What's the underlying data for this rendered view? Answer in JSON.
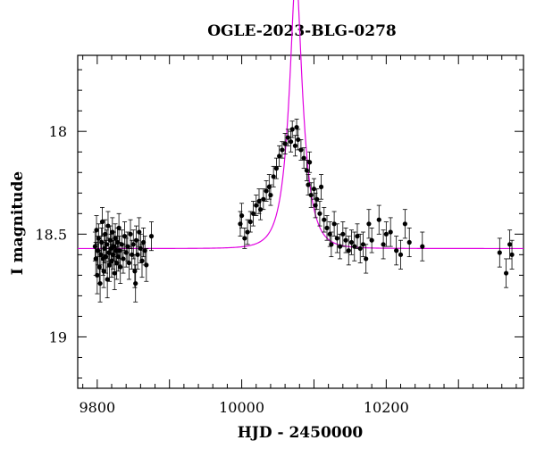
{
  "chart_data": {
    "type": "scatter",
    "title": "OGLE-2023-BLG-0278",
    "xlabel": "HJD - 2450000",
    "ylabel": "I magnitude",
    "xlim": [
      9773,
      10390
    ],
    "ylim": [
      19.25,
      17.63
    ],
    "y_inverted": true,
    "x_ticks": [
      9800,
      10000,
      10200
    ],
    "y_ticks": [
      18,
      18.5,
      19
    ],
    "colors": {
      "points": "#000000",
      "model": "#e100e1",
      "axes": "#000000"
    },
    "series": [
      {
        "values": [
          {
            "x": 9797,
            "y": 18.56,
            "err": 0.07
          },
          {
            "x": 9798,
            "y": 18.62,
            "err": 0.08
          },
          {
            "x": 9799,
            "y": 18.48,
            "err": 0.07
          },
          {
            "x": 9800,
            "y": 18.7,
            "err": 0.09
          },
          {
            "x": 9801,
            "y": 18.58,
            "err": 0.07
          },
          {
            "x": 9802,
            "y": 18.52,
            "err": 0.07
          },
          {
            "x": 9803,
            "y": 18.66,
            "err": 0.08
          },
          {
            "x": 9804,
            "y": 18.74,
            "err": 0.09
          },
          {
            "x": 9805,
            "y": 18.6,
            "err": 0.07
          },
          {
            "x": 9806,
            "y": 18.54,
            "err": 0.07
          },
          {
            "x": 9807,
            "y": 18.44,
            "err": 0.07
          },
          {
            "x": 9808,
            "y": 18.62,
            "err": 0.08
          },
          {
            "x": 9809,
            "y": 18.68,
            "err": 0.08
          },
          {
            "x": 9810,
            "y": 18.57,
            "err": 0.07
          },
          {
            "x": 9811,
            "y": 18.5,
            "err": 0.07
          },
          {
            "x": 9812,
            "y": 18.61,
            "err": 0.08
          },
          {
            "x": 9813,
            "y": 18.55,
            "err": 0.07
          },
          {
            "x": 9814,
            "y": 18.72,
            "err": 0.09
          },
          {
            "x": 9815,
            "y": 18.46,
            "err": 0.07
          },
          {
            "x": 9816,
            "y": 18.59,
            "err": 0.07
          },
          {
            "x": 9817,
            "y": 18.65,
            "err": 0.08
          },
          {
            "x": 9818,
            "y": 18.53,
            "err": 0.07
          },
          {
            "x": 9819,
            "y": 18.57,
            "err": 0.07
          },
          {
            "x": 9820,
            "y": 18.63,
            "err": 0.08
          },
          {
            "x": 9821,
            "y": 18.49,
            "err": 0.07
          },
          {
            "x": 9822,
            "y": 18.6,
            "err": 0.07
          },
          {
            "x": 9823,
            "y": 18.56,
            "err": 0.07
          },
          {
            "x": 9824,
            "y": 18.69,
            "err": 0.08
          },
          {
            "x": 9825,
            "y": 18.52,
            "err": 0.07
          },
          {
            "x": 9826,
            "y": 18.58,
            "err": 0.07
          },
          {
            "x": 9827,
            "y": 18.64,
            "err": 0.08
          },
          {
            "x": 9828,
            "y": 18.54,
            "err": 0.07
          },
          {
            "x": 9829,
            "y": 18.61,
            "err": 0.07
          },
          {
            "x": 9830,
            "y": 18.47,
            "err": 0.07
          },
          {
            "x": 9831,
            "y": 18.58,
            "err": 0.07
          },
          {
            "x": 9832,
            "y": 18.66,
            "err": 0.08
          },
          {
            "x": 9834,
            "y": 18.55,
            "err": 0.07
          },
          {
            "x": 9836,
            "y": 18.62,
            "err": 0.07
          },
          {
            "x": 9838,
            "y": 18.51,
            "err": 0.07
          },
          {
            "x": 9840,
            "y": 18.59,
            "err": 0.07
          },
          {
            "x": 9842,
            "y": 18.56,
            "err": 0.07
          },
          {
            "x": 9844,
            "y": 18.64,
            "err": 0.08
          },
          {
            "x": 9846,
            "y": 18.5,
            "err": 0.07
          },
          {
            "x": 9848,
            "y": 18.6,
            "err": 0.07
          },
          {
            "x": 9850,
            "y": 18.55,
            "err": 0.07
          },
          {
            "x": 9852,
            "y": 18.68,
            "err": 0.08
          },
          {
            "x": 9853,
            "y": 18.74,
            "err": 0.09
          },
          {
            "x": 9854,
            "y": 18.53,
            "err": 0.07
          },
          {
            "x": 9856,
            "y": 18.6,
            "err": 0.07
          },
          {
            "x": 9858,
            "y": 18.49,
            "err": 0.07
          },
          {
            "x": 9860,
            "y": 18.57,
            "err": 0.07
          },
          {
            "x": 9862,
            "y": 18.63,
            "err": 0.08
          },
          {
            "x": 9864,
            "y": 18.54,
            "err": 0.07
          },
          {
            "x": 9866,
            "y": 18.58,
            "err": 0.07
          },
          {
            "x": 9868,
            "y": 18.65,
            "err": 0.08
          },
          {
            "x": 9875,
            "y": 18.51,
            "err": 0.07
          },
          {
            "x": 9998,
            "y": 18.45,
            "err": 0.06
          },
          {
            "x": 10000,
            "y": 18.41,
            "err": 0.06
          },
          {
            "x": 10004,
            "y": 18.52,
            "err": 0.05
          },
          {
            "x": 10008,
            "y": 18.49,
            "err": 0.06
          },
          {
            "x": 10012,
            "y": 18.44,
            "err": 0.05
          },
          {
            "x": 10016,
            "y": 18.4,
            "err": 0.06
          },
          {
            "x": 10020,
            "y": 18.36,
            "err": 0.05
          },
          {
            "x": 10024,
            "y": 18.34,
            "err": 0.06
          },
          {
            "x": 10026,
            "y": 18.38,
            "err": 0.05
          },
          {
            "x": 10030,
            "y": 18.33,
            "err": 0.05
          },
          {
            "x": 10034,
            "y": 18.29,
            "err": 0.05
          },
          {
            "x": 10038,
            "y": 18.27,
            "err": 0.06
          },
          {
            "x": 10040,
            "y": 18.31,
            "err": 0.05
          },
          {
            "x": 10044,
            "y": 18.22,
            "err": 0.05
          },
          {
            "x": 10048,
            "y": 18.18,
            "err": 0.05
          },
          {
            "x": 10052,
            "y": 18.12,
            "err": 0.05
          },
          {
            "x": 10056,
            "y": 18.09,
            "err": 0.04
          },
          {
            "x": 10060,
            "y": 18.06,
            "err": 0.05
          },
          {
            "x": 10064,
            "y": 18.03,
            "err": 0.04
          },
          {
            "x": 10068,
            "y": 18.05,
            "err": 0.05
          },
          {
            "x": 10070,
            "y": 17.99,
            "err": 0.04
          },
          {
            "x": 10074,
            "y": 18.07,
            "err": 0.05
          },
          {
            "x": 10076,
            "y": 17.98,
            "err": 0.04
          },
          {
            "x": 10078,
            "y": 18.04,
            "err": 0.05
          },
          {
            "x": 10082,
            "y": 18.09,
            "err": 0.05
          },
          {
            "x": 10086,
            "y": 18.13,
            "err": 0.05
          },
          {
            "x": 10090,
            "y": 18.19,
            "err": 0.05
          },
          {
            "x": 10092,
            "y": 18.26,
            "err": 0.05
          },
          {
            "x": 10094,
            "y": 18.15,
            "err": 0.05
          },
          {
            "x": 10096,
            "y": 18.31,
            "err": 0.06
          },
          {
            "x": 10100,
            "y": 18.28,
            "err": 0.05
          },
          {
            "x": 10102,
            "y": 18.36,
            "err": 0.06
          },
          {
            "x": 10104,
            "y": 18.33,
            "err": 0.05
          },
          {
            "x": 10108,
            "y": 18.4,
            "err": 0.06
          },
          {
            "x": 10110,
            "y": 18.27,
            "err": 0.06
          },
          {
            "x": 10114,
            "y": 18.43,
            "err": 0.06
          },
          {
            "x": 10118,
            "y": 18.47,
            "err": 0.06
          },
          {
            "x": 10122,
            "y": 18.5,
            "err": 0.06
          },
          {
            "x": 10124,
            "y": 18.55,
            "err": 0.06
          },
          {
            "x": 10128,
            "y": 18.45,
            "err": 0.06
          },
          {
            "x": 10132,
            "y": 18.52,
            "err": 0.07
          },
          {
            "x": 10136,
            "y": 18.56,
            "err": 0.06
          },
          {
            "x": 10140,
            "y": 18.5,
            "err": 0.06
          },
          {
            "x": 10144,
            "y": 18.53,
            "err": 0.06
          },
          {
            "x": 10148,
            "y": 18.58,
            "err": 0.07
          },
          {
            "x": 10152,
            "y": 18.54,
            "err": 0.06
          },
          {
            "x": 10156,
            "y": 18.56,
            "err": 0.07
          },
          {
            "x": 10160,
            "y": 18.51,
            "err": 0.06
          },
          {
            "x": 10164,
            "y": 18.57,
            "err": 0.07
          },
          {
            "x": 10168,
            "y": 18.55,
            "err": 0.06
          },
          {
            "x": 10172,
            "y": 18.62,
            "err": 0.07
          },
          {
            "x": 10176,
            "y": 18.45,
            "err": 0.07
          },
          {
            "x": 10180,
            "y": 18.53,
            "err": 0.06
          },
          {
            "x": 10190,
            "y": 18.43,
            "err": 0.07
          },
          {
            "x": 10196,
            "y": 18.55,
            "err": 0.07
          },
          {
            "x": 10200,
            "y": 18.5,
            "err": 0.06
          },
          {
            "x": 10206,
            "y": 18.49,
            "err": 0.07
          },
          {
            "x": 10214,
            "y": 18.58,
            "err": 0.07
          },
          {
            "x": 10220,
            "y": 18.6,
            "err": 0.07
          },
          {
            "x": 10226,
            "y": 18.45,
            "err": 0.07
          },
          {
            "x": 10232,
            "y": 18.54,
            "err": 0.07
          },
          {
            "x": 10250,
            "y": 18.56,
            "err": 0.07
          },
          {
            "x": 10357,
            "y": 18.59,
            "err": 0.07
          },
          {
            "x": 10366,
            "y": 18.69,
            "err": 0.07
          },
          {
            "x": 10371,
            "y": 18.55,
            "err": 0.07
          },
          {
            "x": 10374,
            "y": 18.6,
            "err": 0.07
          }
        ]
      }
    ],
    "model": {
      "t0": 10075,
      "tE": 20,
      "u0": 0.3,
      "baseline": 18.57
    }
  }
}
